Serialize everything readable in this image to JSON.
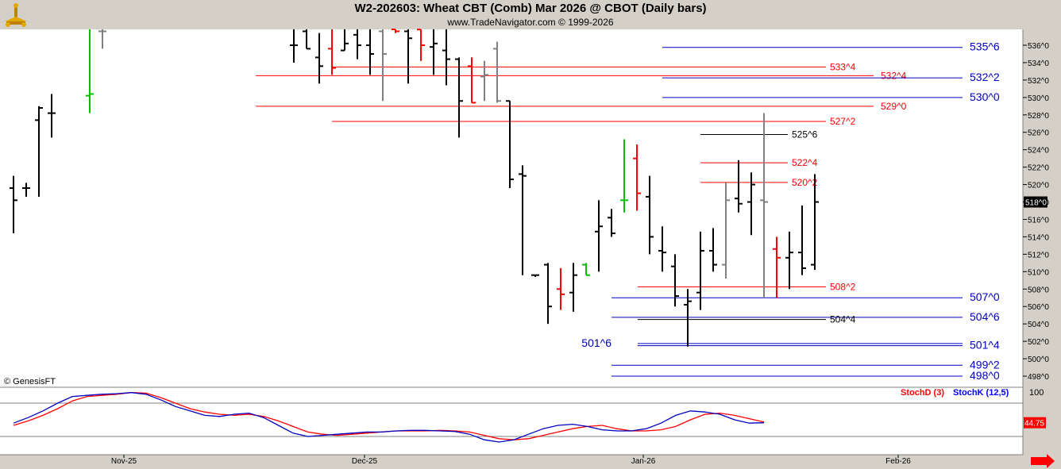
{
  "header": {
    "title": "W2-202603:  Wheat CBT (Comb) Mar 2026 @ CBOT  (Daily bars)",
    "subtitle": "www.TradeNavigator.com © 1999-2026"
  },
  "footer": {
    "copyright": "© GenesisFT"
  },
  "colors": {
    "background": "#ffffff",
    "frame": "#d4d0c8",
    "bar_default": "#000000",
    "bar_down": "#ff0000",
    "bar_up": "#00c000",
    "bar_gray": "#808080",
    "level_blue": "#0000c0",
    "level_red": "#ff0000",
    "level_black": "#000000",
    "stoch_d": "#ff0000",
    "stoch_k": "#0000ff",
    "last_price_bg": "#000000",
    "stoch_last_bg": "#ff0000"
  },
  "chart_data": [
    {
      "type": "ohlc",
      "title": "W2-202603:  Wheat CBT (Comb) Mar 2026 @ CBOT  (Daily bars)",
      "y_tick_labels": [
        "498^0",
        "500^0",
        "502^0",
        "504^0",
        "506^0",
        "508^0",
        "510^0",
        "512^0",
        "514^0",
        "516^0",
        "518^0",
        "520^0",
        "522^0",
        "524^0",
        "526^0",
        "528^0",
        "530^0",
        "532^0",
        "534^0",
        "536^0"
      ],
      "ylim": [
        497,
        538
      ],
      "x_tick_labels": [
        "Nov-25",
        "Dec-25",
        "Jan-26",
        "Feb-26"
      ],
      "last_price_label": "518^0",
      "last_price": 518.0,
      "bars": [
        {
          "o": 519.6,
          "h": 521.0,
          "l": 514.4,
          "c": 518.2,
          "color": "black"
        },
        {
          "o": 519.6,
          "h": 520.2,
          "l": 518.6,
          "c": 519.6,
          "color": "black"
        },
        {
          "o": 527.4,
          "h": 529.0,
          "l": 518.6,
          "c": 528.8,
          "color": "black"
        },
        {
          "o": 528.2,
          "h": 530.4,
          "l": 525.4,
          "c": 528.2,
          "color": "black"
        },
        {
          "o": 530.2,
          "h": 538,
          "l": 528.2,
          "c": 530.4,
          "color": "green"
        },
        {
          "o": 537.6,
          "h": 538,
          "l": 535.6,
          "c": 537.6,
          "color": "gray"
        },
        {
          "o": 536.0,
          "h": 538,
          "l": 534.0,
          "c": 536.0,
          "color": "black"
        },
        {
          "o": 537.6,
          "h": 538,
          "l": 535.6,
          "c": 535.6,
          "color": "black"
        },
        {
          "o": 534.6,
          "h": 537.4,
          "l": 531.6,
          "c": 533.6,
          "color": "black"
        },
        {
          "o": 535.6,
          "h": 538,
          "l": 532.6,
          "c": 533.4,
          "color": "red"
        },
        {
          "o": 535.4,
          "h": 538,
          "l": 535.4,
          "c": 536.2,
          "color": "black"
        },
        {
          "o": 537.2,
          "h": 538,
          "l": 534.4,
          "c": 536.0,
          "color": "black"
        },
        {
          "o": 536.0,
          "h": 538,
          "l": 532.6,
          "c": 535.0,
          "color": "black"
        },
        {
          "o": 537.6,
          "h": 538,
          "l": 529.6,
          "c": 535.0,
          "color": "gray"
        },
        {
          "o": 538.0,
          "h": 538,
          "l": 537.4,
          "c": 537.6,
          "color": "red"
        },
        {
          "o": 537.6,
          "h": 538,
          "l": 531.6,
          "c": 536.8,
          "color": "black"
        },
        {
          "o": 537.8,
          "h": 538,
          "l": 534.2,
          "c": 536.0,
          "color": "red"
        },
        {
          "o": 535.8,
          "h": 538,
          "l": 532.6,
          "c": 536.2,
          "color": "black"
        },
        {
          "o": 535.4,
          "h": 538,
          "l": 531.4,
          "c": 534.4,
          "color": "black"
        },
        {
          "o": 534.4,
          "h": 534.6,
          "l": 525.4,
          "c": 529.6,
          "color": "black"
        },
        {
          "o": 533.6,
          "h": 534.6,
          "l": 529.4,
          "c": 529.4,
          "color": "red"
        },
        {
          "o": 532.4,
          "h": 534.2,
          "l": 529.6,
          "c": 532.6,
          "color": "gray"
        },
        {
          "o": 535.6,
          "h": 536.4,
          "l": 529.4,
          "c": 529.6,
          "color": "gray"
        },
        {
          "o": 529.6,
          "h": 529.6,
          "l": 519.6,
          "c": 520.6,
          "color": "black"
        },
        {
          "o": 521.2,
          "h": 522.2,
          "l": 509.6,
          "c": 521.0,
          "color": "black"
        },
        {
          "o": 509.6,
          "h": 509.6,
          "l": 509.4,
          "c": 509.6,
          "color": "black"
        },
        {
          "o": 510.8,
          "h": 511.0,
          "l": 504.0,
          "c": 506.0,
          "color": "black"
        },
        {
          "o": 508.0,
          "h": 510.4,
          "l": 505.6,
          "c": 507.4,
          "color": "red"
        },
        {
          "o": 507.6,
          "h": 511.0,
          "l": 505.4,
          "c": 509.6,
          "color": "black"
        },
        {
          "o": 510.8,
          "h": 511.0,
          "l": 509.6,
          "c": 509.6,
          "color": "green"
        },
        {
          "o": 514.6,
          "h": 518.2,
          "l": 510.0,
          "c": 515.2,
          "color": "black"
        },
        {
          "o": 516.2,
          "h": 517.2,
          "l": 514.0,
          "c": 514.4,
          "color": "black"
        },
        {
          "o": 518.2,
          "h": 525.2,
          "l": 516.8,
          "c": 518.2,
          "color": "green"
        },
        {
          "o": 523.0,
          "h": 524.6,
          "l": 517.0,
          "c": 519.0,
          "color": "red"
        },
        {
          "o": 518.6,
          "h": 521.0,
          "l": 512.0,
          "c": 514.0,
          "color": "black"
        },
        {
          "o": 512.4,
          "h": 515.2,
          "l": 510.0,
          "c": 512.2,
          "color": "black"
        },
        {
          "o": 510.6,
          "h": 512.0,
          "l": 506.0,
          "c": 507.2,
          "color": "black"
        },
        {
          "o": 506.2,
          "h": 508.0,
          "l": 501.4,
          "c": 506.6,
          "color": "black"
        },
        {
          "o": 507.6,
          "h": 514.6,
          "l": 505.6,
          "c": 512.4,
          "color": "black"
        },
        {
          "o": 512.4,
          "h": 515.0,
          "l": 510.0,
          "c": 510.8,
          "color": "black"
        },
        {
          "o": 510.8,
          "h": 520.2,
          "l": 509.2,
          "c": 518.2,
          "color": "gray"
        },
        {
          "o": 518.4,
          "h": 522.8,
          "l": 516.8,
          "c": 517.8,
          "color": "black"
        },
        {
          "o": 518.0,
          "h": 521.4,
          "l": 514.2,
          "c": 520.0,
          "color": "black"
        },
        {
          "o": 518.2,
          "h": 528.2,
          "l": 507.0,
          "c": 518.0,
          "color": "gray"
        },
        {
          "o": 512.6,
          "h": 514.0,
          "l": 507.0,
          "c": 511.6,
          "color": "red"
        },
        {
          "o": 511.6,
          "h": 514.6,
          "l": 508.0,
          "c": 512.2,
          "color": "black"
        },
        {
          "o": 512.2,
          "h": 517.6,
          "l": 509.6,
          "c": 510.4,
          "color": "black"
        },
        {
          "o": 510.8,
          "h": 521.2,
          "l": 510.2,
          "c": 518.0,
          "color": "black"
        }
      ],
      "levels": [
        {
          "label": "535^6",
          "value": 535.75,
          "color": "blue"
        },
        {
          "label": "533^4",
          "value": 533.5,
          "color": "red"
        },
        {
          "label": "532^4",
          "value": 532.5,
          "color": "red"
        },
        {
          "label": "532^2",
          "value": 532.25,
          "color": "blue"
        },
        {
          "label": "530^0",
          "value": 530.0,
          "color": "blue"
        },
        {
          "label": "529^0",
          "value": 529.0,
          "color": "red"
        },
        {
          "label": "527^2",
          "value": 527.25,
          "color": "red"
        },
        {
          "label": "525^6",
          "value": 525.75,
          "color": "black"
        },
        {
          "label": "522^4",
          "value": 522.5,
          "color": "red"
        },
        {
          "label": "520^2",
          "value": 520.25,
          "color": "red"
        },
        {
          "label": "508^2",
          "value": 508.25,
          "color": "red"
        },
        {
          "label": "507^0",
          "value": 507.0,
          "color": "blue"
        },
        {
          "label": "504^6",
          "value": 504.75,
          "color": "blue"
        },
        {
          "label": "504^4",
          "value": 504.5,
          "color": "black"
        },
        {
          "label": "501^6",
          "value": 501.75,
          "color": "blue"
        },
        {
          "label": "501^4",
          "value": 501.5,
          "color": "blue"
        },
        {
          "label": "499^2",
          "value": 499.25,
          "color": "blue"
        },
        {
          "label": "498^0",
          "value": 498.0,
          "color": "blue"
        }
      ]
    },
    {
      "type": "line",
      "title": "",
      "ylim": [
        0,
        100
      ],
      "y_tick_labels": [
        "100"
      ],
      "legend": [
        "StochD (3)",
        "StochK (12,5)"
      ],
      "last_value_label": "44.75",
      "last_value": 44.75,
      "series": [
        {
          "name": "StochD (3)",
          "color": "red",
          "values": [
            40,
            48,
            58,
            70,
            84,
            92,
            94,
            96,
            99,
            98,
            90,
            80,
            70,
            64,
            60,
            58,
            60,
            56,
            48,
            38,
            28,
            24,
            22,
            24,
            26,
            28,
            30,
            30,
            30,
            31,
            30,
            28,
            22,
            16,
            14,
            16,
            22,
            28,
            34,
            38,
            40,
            34,
            30,
            30,
            32,
            38,
            50,
            60,
            62,
            58,
            52,
            46
          ]
        },
        {
          "name": "StochK (12,5)",
          "color": "blue",
          "values": [
            44,
            54,
            66,
            80,
            92,
            94,
            96,
            97,
            99,
            96,
            86,
            74,
            66,
            58,
            56,
            60,
            62,
            54,
            40,
            26,
            20,
            22,
            24,
            26,
            28,
            28,
            30,
            31,
            31,
            30,
            29,
            24,
            14,
            10,
            14,
            24,
            34,
            40,
            42,
            38,
            32,
            30,
            30,
            34,
            44,
            58,
            66,
            64,
            60,
            50,
            44,
            44.75
          ]
        }
      ]
    }
  ]
}
